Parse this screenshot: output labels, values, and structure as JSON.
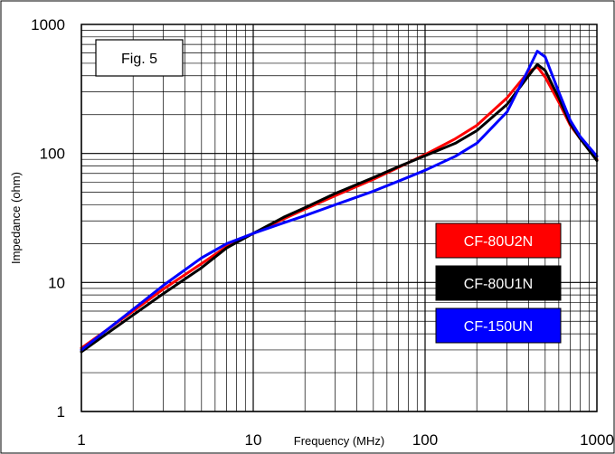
{
  "chart_data": {
    "type": "line",
    "title": "",
    "annotation": "Fig. 5",
    "xlabel": "Frequency (MHz)",
    "ylabel": "Impedance (ohm)",
    "xscale": "log",
    "yscale": "log",
    "xlim": [
      1,
      1000
    ],
    "ylim": [
      1,
      1000
    ],
    "grid": true,
    "legend_position": "right",
    "x_tick_labels": [
      "1",
      "10",
      "100",
      "1000"
    ],
    "y_tick_labels": [
      "1",
      "10",
      "100",
      "1000"
    ],
    "series": [
      {
        "name": "CF-80U2N",
        "color": "#ff0000",
        "x": [
          1,
          2,
          3,
          5,
          7,
          10,
          15,
          20,
          30,
          50,
          70,
          100,
          150,
          200,
          300,
          400,
          450,
          500,
          600,
          700,
          800,
          1000
        ],
        "y": [
          3.1,
          6.0,
          8.9,
          14.0,
          19.0,
          24.0,
          31.0,
          37.0,
          47.0,
          63.0,
          78.0,
          98.0,
          130.0,
          165.0,
          270.0,
          430.0,
          470.0,
          390.0,
          250.0,
          165.0,
          130.0,
          90.0
        ]
      },
      {
        "name": "CF-80U1N",
        "color": "#000000",
        "x": [
          1,
          2,
          3,
          5,
          7,
          10,
          15,
          20,
          30,
          50,
          70,
          100,
          150,
          200,
          300,
          400,
          450,
          500,
          600,
          700,
          800,
          1000
        ],
        "y": [
          2.9,
          5.6,
          8.2,
          13.0,
          18.5,
          24.0,
          32.0,
          38.0,
          49.0,
          65.0,
          79.0,
          96.0,
          120.0,
          150.0,
          240.0,
          400.0,
          490.0,
          440.0,
          270.0,
          170.0,
          130.0,
          88.0
        ]
      },
      {
        "name": "CF-150UN",
        "color": "#0000ff",
        "x": [
          1,
          2,
          3,
          5,
          7,
          10,
          15,
          20,
          30,
          50,
          70,
          100,
          150,
          200,
          300,
          400,
          450,
          500,
          600,
          700,
          800,
          1000
        ],
        "y": [
          3.0,
          6.2,
          9.5,
          15.5,
          20.0,
          24.0,
          29.0,
          33.0,
          40.0,
          51.0,
          61.0,
          74.0,
          95.0,
          120.0,
          210.0,
          450.0,
          620.0,
          560.0,
          300.0,
          180.0,
          135.0,
          95.0
        ]
      }
    ]
  }
}
